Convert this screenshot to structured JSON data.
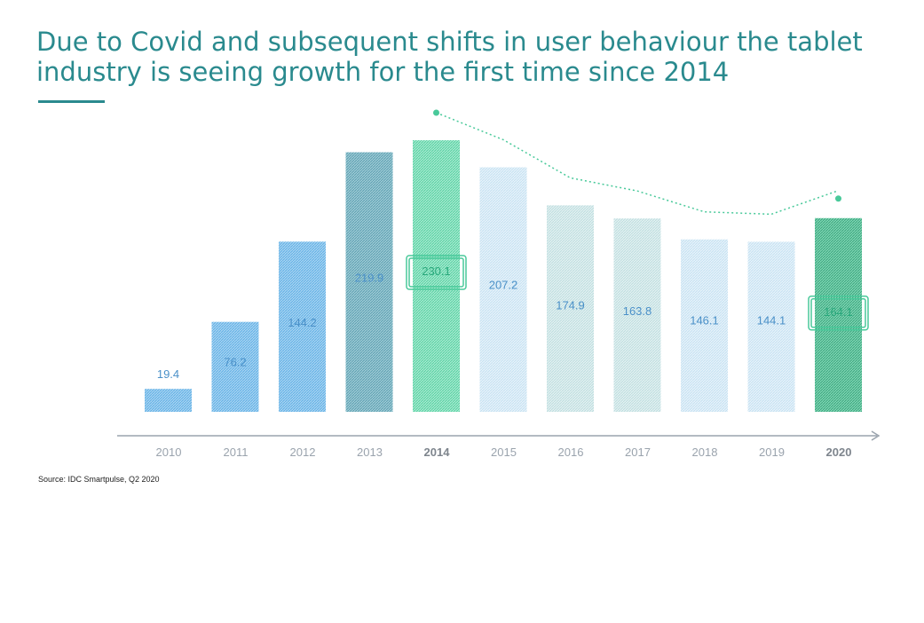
{
  "title_lines": [
    "Due to Covid and subsequent shifts in user behaviour the tablet",
    "industry is seeing growth for the first time since 2014"
  ],
  "source": "Source: IDC Smartpulse, Q2 2020",
  "colors": {
    "title": "#2a8a8e",
    "blue_dark": "#1f8fd6",
    "blue_light": "#8fc3ea",
    "teal": "#49c99a",
    "slate": "#5a9fb0",
    "axis": "#9aa3ad",
    "trend": "#49c99a",
    "label_blue": "#4a90c8",
    "highlight_label": "#2aa87c"
  },
  "chart_data": {
    "type": "bar",
    "categories": [
      "2010",
      "2011",
      "2012",
      "2013",
      "2014",
      "2015",
      "2016",
      "2017",
      "2018",
      "2019",
      "2020"
    ],
    "values": [
      19.4,
      76.2,
      144.2,
      219.9,
      230.1,
      207.2,
      174.9,
      163.8,
      146.1,
      144.1,
      164.1
    ],
    "value_labels": [
      "19.4",
      "76.2",
      "144.2",
      "219.9",
      "230.1",
      "207.2",
      "174.9",
      "163.8",
      "146.1",
      "144.1",
      "164.1"
    ],
    "highlighted": [
      "2014",
      "2020"
    ],
    "trend_line": {
      "from": "2014",
      "to": "2020",
      "style": "dotted",
      "color": "#49c99a"
    },
    "grid": false,
    "legend": "none",
    "ylim": [
      0,
      230.1
    ]
  }
}
